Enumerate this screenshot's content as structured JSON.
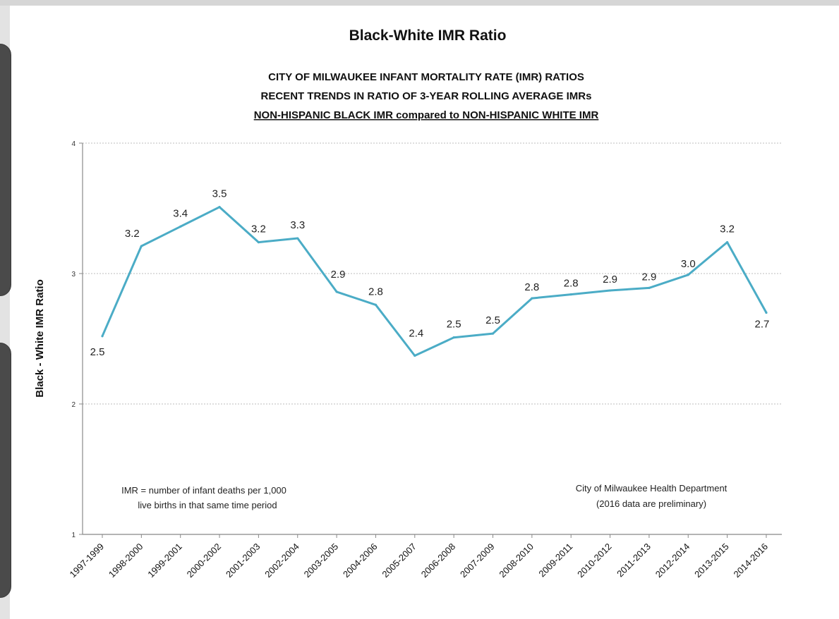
{
  "chart_data": {
    "type": "line",
    "title": "Black-White IMR Ratio",
    "subtitle_lines": [
      "CITY OF MILWAUKEE INFANT MORTALITY RATE (IMR) RATIOS",
      "RECENT TRENDS IN RATIO OF 3-YEAR ROLLING AVERAGE IMRs",
      "NON-HISPANIC BLACK IMR compared to NON-HISPANIC WHITE IMR"
    ],
    "ylabel": "Black - White IMR Ratio",
    "xlabel": "",
    "ylim": [
      1,
      4
    ],
    "yticks": [
      "1",
      "2",
      "3",
      "4"
    ],
    "grid": "horizontal dotted",
    "categories": [
      "1997-1999",
      "1998-2000",
      "1999-2001",
      "2000-2002",
      "2001-2003",
      "2002-2004",
      "2003-2005",
      "2004-2006",
      "2005-2007",
      "2006-2008",
      "2007-2009",
      "2008-2010",
      "2009-2011",
      "2010-2012",
      "2011-2013",
      "2012-2014",
      "2013-2015",
      "2014-2016"
    ],
    "values": [
      2.52,
      3.21,
      3.36,
      3.51,
      3.24,
      3.27,
      2.86,
      2.76,
      2.37,
      2.51,
      2.54,
      2.81,
      2.84,
      2.87,
      2.89,
      2.99,
      3.24,
      2.7
    ],
    "data_labels": [
      "2.5",
      "3.2",
      "3.4",
      "3.5",
      "3.2",
      "3.3",
      "2.9",
      "2.8",
      "2.4",
      "2.5",
      "2.5",
      "2.8",
      "2.8",
      "2.9",
      "2.9",
      "3.0",
      "3.2",
      "2.7"
    ],
    "line_color": "#4bacc6",
    "annotations": {
      "left": [
        "IMR = number of infant deaths per 1,000",
        "live births in that same time period"
      ],
      "right": [
        "City of Milwaukee Health Department",
        "(2016 data are preliminary)"
      ]
    }
  }
}
